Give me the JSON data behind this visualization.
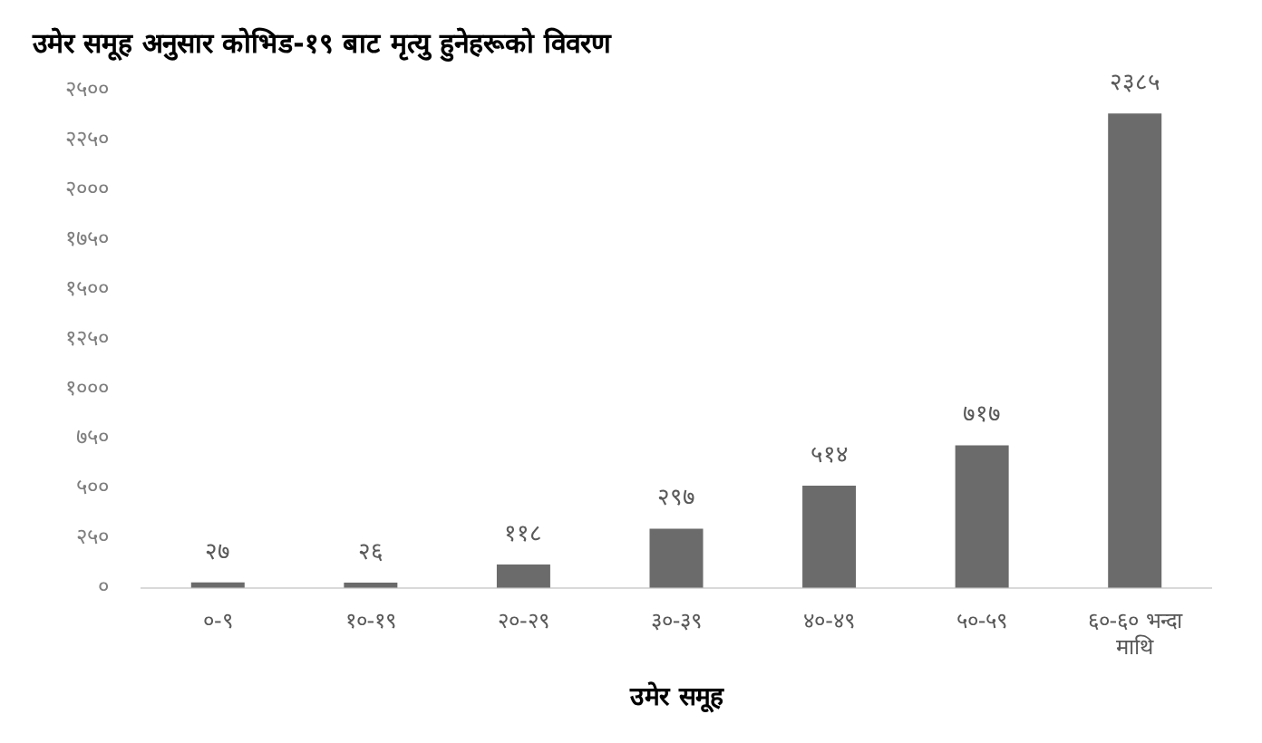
{
  "chart_data": {
    "type": "bar",
    "title": "उमेर समूह अनुसार कोभिड-१९ बाट मृत्यु हुनेहरूको विवरण",
    "xlabel": "उमेर समूह",
    "categories": [
      "०-९",
      "१०-१९",
      "२०-२९",
      "३०-३९",
      "४०-४९",
      "५०-५९",
      "६०-६० भन्दा माथि"
    ],
    "values": [
      27,
      26,
      118,
      297,
      514,
      717,
      2385
    ],
    "value_labels": [
      "२७",
      "२६",
      "११८",
      "२९७",
      "५१४",
      "७१७",
      "२३८५"
    ],
    "color": "#6b6b6b",
    "ylim": [
      0,
      2500
    ],
    "yticks": [
      {
        "value": 0,
        "label": "०"
      },
      {
        "value": 250,
        "label": "२५०"
      },
      {
        "value": 500,
        "label": "५००"
      },
      {
        "value": 750,
        "label": "७५०"
      },
      {
        "value": 1000,
        "label": "१०००"
      },
      {
        "value": 1250,
        "label": "१२५०"
      },
      {
        "value": 1500,
        "label": "१५००"
      },
      {
        "value": 1750,
        "label": "१७५०"
      },
      {
        "value": 2000,
        "label": "२०००"
      },
      {
        "value": 2250,
        "label": "२२५०"
      },
      {
        "value": 2500,
        "label": "२५००"
      }
    ],
    "grid": false,
    "legend": false
  }
}
